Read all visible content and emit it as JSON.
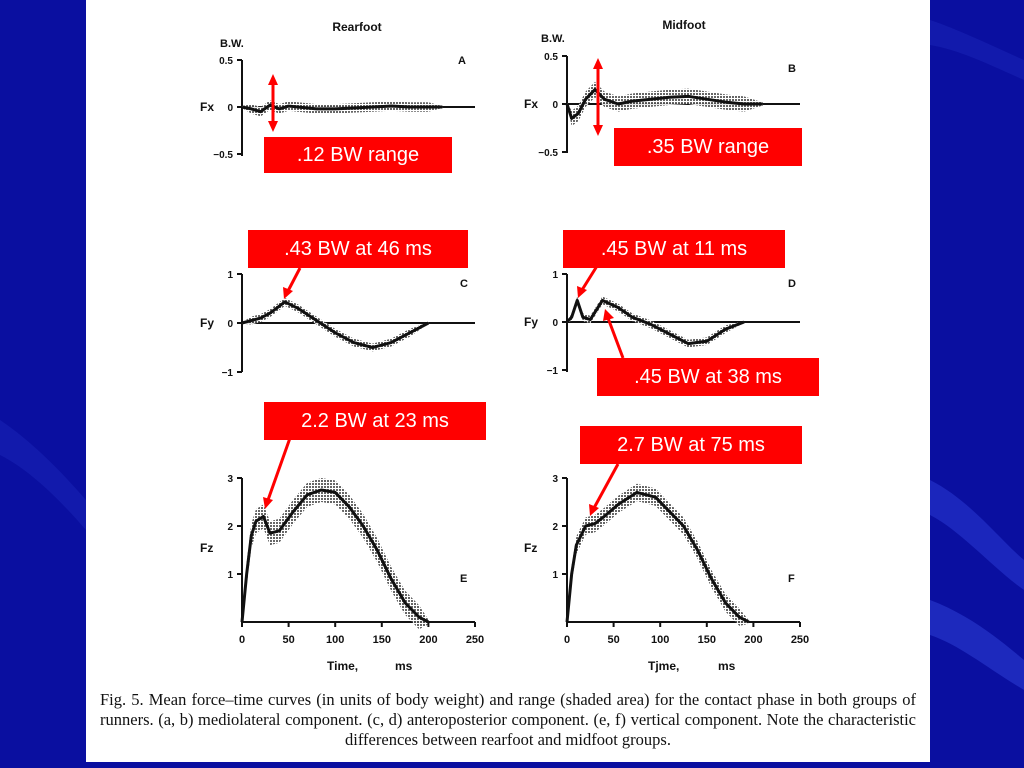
{
  "slide": {
    "background": "#0a0fa0",
    "caption": "Fig. 5. Mean force–time curves (in units of body weight) and range (shaded area) for the contact phase in both groups of runners. (a, b) mediolateral component. (c, d) anteroposterior component. (e, f) vertical component. Note the characteristic differences between rearfoot and midfoot groups."
  },
  "figure": {
    "column_titles": {
      "left": "Rearfoot",
      "right": "Midfoot"
    },
    "bw_label": "B.W.",
    "x_axis": {
      "ticks": [
        "0",
        "50",
        "100",
        "150",
        "200",
        "250"
      ],
      "label_left": "Time,",
      "unit_left": "ms",
      "label_right": "Tjme,",
      "unit_right": "ms"
    }
  },
  "callouts": {
    "a": ".12 BW range",
    "b": ".35 BW range",
    "c": ".43 BW at 46 ms",
    "d1": ".45 BW at 11 ms",
    "d2": ".45 BW at 38 ms",
    "e": "2.2 BW at 23 ms",
    "f": "2.7 BW at 75 ms",
    "color": "#ff0000"
  },
  "chart_data": [
    {
      "type": "line",
      "panel_letter": "A",
      "ylabel": "Fx",
      "yticks": [
        "0.5",
        "0",
        "−0.5"
      ],
      "ylim": [
        -0.5,
        0.5
      ],
      "xlim": [
        0,
        250
      ],
      "series": [
        {
          "x": [
            0,
            10,
            20,
            30,
            40,
            50,
            60,
            80,
            100,
            120,
            140,
            160,
            180,
            200,
            215
          ],
          "y": [
            0,
            -0.02,
            -0.05,
            0.02,
            -0.02,
            0.01,
            0.0,
            -0.02,
            -0.02,
            -0.01,
            0.0,
            0.01,
            0.0,
            0.0,
            0.0
          ]
        }
      ]
    },
    {
      "type": "line",
      "panel_letter": "B",
      "ylabel": "Fx",
      "yticks": [
        "0.5",
        "0",
        "−0.5"
      ],
      "ylim": [
        -0.5,
        0.5
      ],
      "xlim": [
        0,
        250
      ],
      "series": [
        {
          "x": [
            0,
            5,
            12,
            20,
            30,
            40,
            55,
            70,
            90,
            110,
            130,
            150,
            170,
            190,
            210
          ],
          "y": [
            0,
            -0.15,
            -0.1,
            0.05,
            0.15,
            0.05,
            0.0,
            0.03,
            0.05,
            0.07,
            0.08,
            0.05,
            0.02,
            0.0,
            0.0
          ]
        }
      ]
    },
    {
      "type": "line",
      "panel_letter": "C",
      "ylabel": "Fy",
      "yticks": [
        "1",
        "0",
        "−1"
      ],
      "ylim": [
        -1,
        1
      ],
      "xlim": [
        0,
        250
      ],
      "series": [
        {
          "x": [
            0,
            10,
            20,
            30,
            46,
            60,
            80,
            100,
            120,
            140,
            160,
            180,
            200
          ],
          "y": [
            0,
            0.05,
            0.1,
            0.2,
            0.43,
            0.3,
            0.05,
            -0.2,
            -0.4,
            -0.5,
            -0.4,
            -0.2,
            0.0
          ]
        }
      ]
    },
    {
      "type": "line",
      "panel_letter": "D",
      "ylabel": "Fy",
      "yticks": [
        "1",
        "0",
        "−1"
      ],
      "ylim": [
        -1,
        1
      ],
      "xlim": [
        0,
        250
      ],
      "series": [
        {
          "x": [
            0,
            5,
            11,
            17,
            25,
            38,
            55,
            70,
            90,
            110,
            130,
            150,
            170,
            190
          ],
          "y": [
            0,
            0.1,
            0.45,
            0.1,
            0.05,
            0.45,
            0.3,
            0.1,
            -0.05,
            -0.25,
            -0.45,
            -0.4,
            -0.15,
            0.0
          ]
        }
      ]
    },
    {
      "type": "line",
      "panel_letter": "E",
      "ylabel": "Fz",
      "yticks": [
        "3",
        "2",
        "1"
      ],
      "ylim": [
        0,
        3
      ],
      "xlim": [
        0,
        250
      ],
      "series": [
        {
          "x": [
            0,
            5,
            10,
            15,
            23,
            30,
            40,
            55,
            70,
            85,
            100,
            115,
            130,
            145,
            160,
            175,
            190,
            200
          ],
          "y": [
            0,
            1.0,
            1.8,
            2.1,
            2.2,
            1.85,
            1.9,
            2.3,
            2.65,
            2.75,
            2.7,
            2.4,
            2.0,
            1.5,
            0.9,
            0.4,
            0.1,
            0
          ]
        }
      ]
    },
    {
      "type": "line",
      "panel_letter": "F",
      "ylabel": "Fz",
      "yticks": [
        "3",
        "2",
        "1"
      ],
      "ylim": [
        0,
        3
      ],
      "xlim": [
        0,
        250
      ],
      "series": [
        {
          "x": [
            0,
            5,
            10,
            20,
            30,
            40,
            55,
            75,
            95,
            110,
            125,
            140,
            155,
            170,
            185,
            195
          ],
          "y": [
            0,
            1.0,
            1.6,
            2.0,
            2.05,
            2.2,
            2.45,
            2.7,
            2.6,
            2.3,
            2.0,
            1.5,
            0.9,
            0.4,
            0.1,
            0
          ]
        }
      ]
    }
  ]
}
